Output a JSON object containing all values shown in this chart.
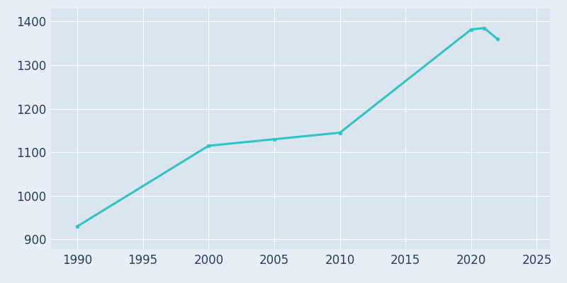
{
  "years": [
    1990,
    2000,
    2005,
    2010,
    2020,
    2021,
    2022
  ],
  "population": [
    930,
    1115,
    1130,
    1145,
    1382,
    1385,
    1360
  ],
  "line_color": "#2EC4C4",
  "figure_facecolor": "#E8EEF6",
  "plot_bg_color": "#DAE5F0",
  "tick_label_color": "#2B3A5C",
  "grid_color": "#FFFFFF",
  "xlim": [
    1988,
    2026
  ],
  "ylim": [
    878,
    1430
  ],
  "xticks": [
    1990,
    1995,
    2000,
    2005,
    2010,
    2015,
    2020,
    2025
  ],
  "yticks": [
    900,
    1000,
    1100,
    1200,
    1300,
    1400
  ],
  "line_width": 2.2,
  "marker_size": 3.5,
  "tick_fontsize": 12,
  "grid_linewidth": 0.8
}
